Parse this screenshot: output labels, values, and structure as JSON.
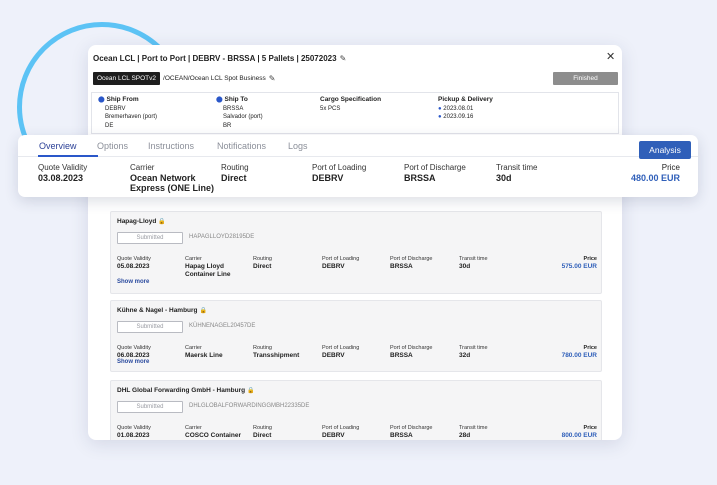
{
  "modal": {
    "title": "Ocean LCL | Port to Port | DEBRV - BRSSA | 5 Pallets | 25072023",
    "tag": "Ocean LCL SPOTv2",
    "path": "/OCEAN/Ocean LCL Spot Business",
    "status": "Finished",
    "ship_from": {
      "label": "Ship From",
      "lines": [
        "DEBRV",
        "Bremerhaven (port)",
        "DE"
      ]
    },
    "ship_to": {
      "label": "Ship To",
      "lines": [
        "BRSSA",
        "Salvador (port)",
        "BR"
      ]
    },
    "cargo": {
      "label": "Cargo Specification",
      "lines": [
        "5x PCS"
      ]
    },
    "pickup": {
      "label": "Pickup & Delivery",
      "dates": [
        "2023.08.01",
        "2023.09.16"
      ]
    }
  },
  "tabs": [
    "Overview",
    "Options",
    "Instructions",
    "Notifications",
    "Logs"
  ],
  "analysis_label": "Analysis",
  "summary": {
    "quote_validity": {
      "label": "Quote Validity",
      "value": "03.08.2023"
    },
    "carrier": {
      "label": "Carrier",
      "value": "Ocean Network Express (ONE Line)"
    },
    "routing": {
      "label": "Routing",
      "value": "Direct"
    },
    "pol": {
      "label": "Port of Loading",
      "value": "DEBRV"
    },
    "pod": {
      "label": "Port of Discharge",
      "value": "BRSSA"
    },
    "transit": {
      "label": "Transit time",
      "value": "30d"
    },
    "price": {
      "label": "Price",
      "value": "480.00 EUR"
    }
  },
  "labels": {
    "quote_validity": "Quote Validity",
    "carrier": "Carrier",
    "routing": "Routing",
    "pol": "Port of Loading",
    "pod": "Port of Discharge",
    "transit": "Transit time",
    "price": "Price",
    "show_more": "Show more",
    "submitted": "Submitted"
  },
  "offers": [
    {
      "name": "Hapag-Lloyd",
      "ref": "HAPAGLLOYD28195DE",
      "validity": "05.08.2023",
      "carrier": "Hapag Lloyd Container Line",
      "routing": "Direct",
      "pol": "DEBRV",
      "pod": "BRSSA",
      "transit": "30d",
      "price": "575.00 EUR"
    },
    {
      "name": "Kühne & Nagel - Hamburg",
      "ref": "KÜHNENAGEL20457DE",
      "validity": "06.08.2023",
      "carrier": "Maersk Line",
      "routing": "Transshipment",
      "pol": "DEBRV",
      "pod": "BRSSA",
      "transit": "32d",
      "price": "780.00 EUR"
    },
    {
      "name": "DHL Global Forwarding GmbH - Hamburg",
      "ref": "DHLGLOBALFORWARDINGGMBH22335DE",
      "validity": "01.08.2023",
      "carrier": "COSCO Container",
      "routing": "Direct",
      "pol": "DEBRV",
      "pod": "BRSSA",
      "transit": "28d",
      "price": "800.00 EUR"
    }
  ],
  "colors": {
    "accent": "#2f5fb9",
    "ring": "#5cc3f5",
    "background": "#eef1fa"
  }
}
